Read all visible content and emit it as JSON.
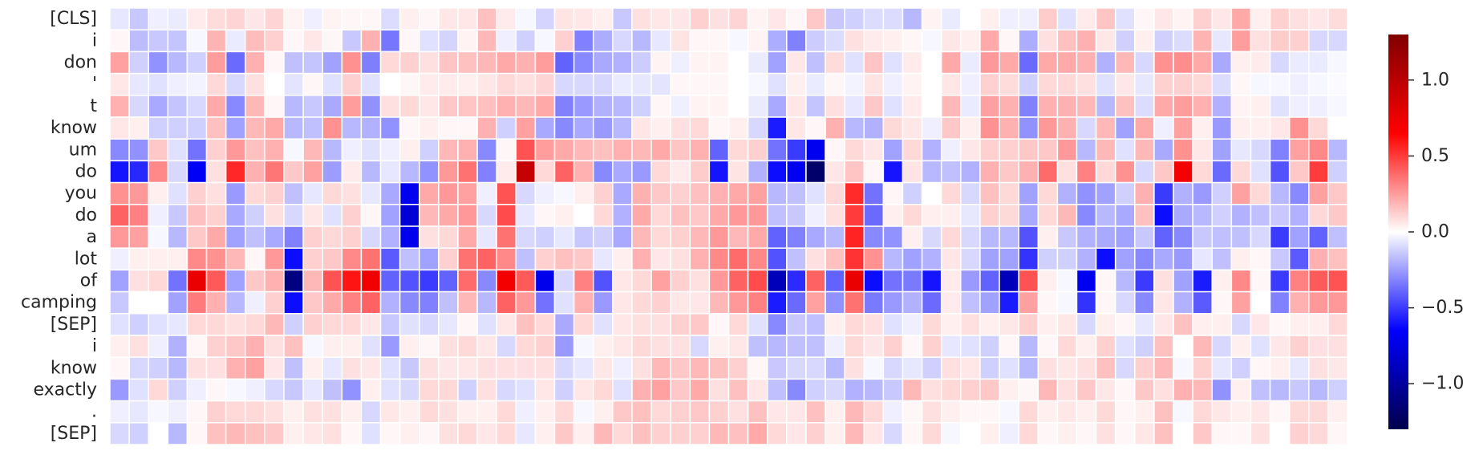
{
  "chart_data": {
    "type": "heatmap",
    "title": "",
    "xlabel": "",
    "ylabel": "",
    "rows": [
      "[CLS]",
      "i",
      "don",
      "'",
      "t",
      "know",
      "um",
      "do",
      "you",
      "do",
      "a",
      "lot",
      "of",
      "camping",
      "[SEP]",
      "i",
      "know",
      "exactly",
      ".",
      "[SEP]"
    ],
    "n_columns": 64,
    "x_tick_labels": [],
    "colormap": "seismic",
    "vmin": -1.3,
    "vmax": 1.3,
    "colorbar_ticks": [
      1.0,
      0.5,
      0.0,
      -0.5,
      -1.0
    ],
    "colorbar_tick_labels": [
      "1.0",
      "0.5",
      "0.0",
      "−0.5",
      "−1.0"
    ],
    "grid": "white cell borders",
    "values": [
      [
        -0.06,
        -0.14,
        -0.04,
        -0.05,
        0.05,
        0.09,
        0.11,
        0.06,
        0.11,
        0.03,
        -0.04,
        0.03,
        0.02,
        0.02,
        -0.09,
        0.04,
        0.02,
        0.06,
        0.06,
        0.16,
        0.05,
        -0.02,
        -0.11,
        0.07,
        0.06,
        0.04,
        -0.14,
        0.08,
        0.06,
        0.06,
        0.12,
        0.08,
        0.11,
        0.03,
        0.06,
        0.02,
        0.14,
        -0.14,
        -0.12,
        -0.09,
        -0.09,
        -0.18,
        0.03,
        -0.05,
        0.0,
        0.04,
        -0.04,
        -0.04,
        0.13,
        -0.08,
        0.05,
        0.15,
        -0.08,
        0.02,
        0.06,
        0.03,
        0.12,
        0.06,
        0.22,
        0.04,
        0.12,
        0.08,
        0.06,
        0.09
      ],
      [
        0.02,
        -0.17,
        -0.14,
        -0.15,
        -0.02,
        0.19,
        -0.05,
        0.17,
        0.12,
        0.02,
        0.06,
        0.02,
        -0.14,
        0.2,
        -0.35,
        0.02,
        -0.08,
        -0.11,
        0.03,
        0.18,
        -0.04,
        -0.12,
        -0.02,
        0.12,
        -0.32,
        -0.21,
        -0.1,
        -0.18,
        -0.06,
        0.07,
        0.02,
        0.02,
        -0.02,
        0.03,
        -0.21,
        -0.32,
        -0.13,
        -0.09,
        0.08,
        0.05,
        0.04,
        0.02,
        -0.02,
        0.06,
        0.04,
        0.22,
        0.02,
        -0.21,
        0.08,
        0.16,
        0.2,
        0.06,
        -0.12,
        0.04,
        -0.12,
        -0.09,
        0.19,
        -0.06,
        0.25,
        0.08,
        0.13,
        0.12,
        -0.1,
        -0.1
      ],
      [
        0.24,
        -0.12,
        -0.28,
        -0.18,
        -0.12,
        0.25,
        -0.38,
        0.2,
        0.02,
        -0.16,
        -0.15,
        -0.24,
        0.28,
        -0.33,
        0.1,
        0.12,
        0.08,
        0.15,
        0.16,
        0.18,
        0.22,
        0.2,
        0.25,
        -0.4,
        -0.3,
        -0.22,
        -0.2,
        -0.13,
        0.03,
        -0.04,
        0.03,
        0.03,
        0.0,
        -0.05,
        -0.24,
        0.06,
        -0.16,
        0.09,
        -0.08,
        0.15,
        -0.08,
        0.05,
        0.0,
        0.22,
        -0.05,
        0.26,
        0.22,
        -0.38,
        0.22,
        0.22,
        0.2,
        -0.2,
        0.18,
        -0.1,
        0.28,
        0.29,
        0.22,
        -0.22,
        0.04,
        0.05,
        -0.1,
        -0.05,
        -0.05,
        -0.02
      ],
      [
        0.06,
        -0.06,
        -0.08,
        -0.04,
        -0.03,
        0.1,
        -0.1,
        0.08,
        0.0,
        -0.07,
        0.02,
        -0.08,
        0.12,
        -0.08,
        0.0,
        0.02,
        0.05,
        0.05,
        0.04,
        0.06,
        0.1,
        0.08,
        0.11,
        -0.1,
        -0.1,
        -0.1,
        -0.05,
        -0.06,
        -0.07,
        0.02,
        0.02,
        0.02,
        0.0,
        -0.02,
        -0.08,
        0.04,
        -0.05,
        0.02,
        -0.03,
        0.07,
        -0.04,
        0.03,
        0.0,
        0.06,
        -0.04,
        0.12,
        0.09,
        -0.12,
        0.1,
        0.1,
        0.08,
        -0.08,
        0.06,
        -0.06,
        0.12,
        0.12,
        0.1,
        -0.09,
        0.02,
        -0.02,
        -0.02,
        -0.04,
        -0.02,
        -0.01
      ],
      [
        0.2,
        -0.1,
        -0.22,
        -0.15,
        -0.1,
        0.22,
        -0.3,
        0.18,
        0.02,
        -0.18,
        -0.14,
        -0.22,
        0.25,
        -0.28,
        0.08,
        0.1,
        0.06,
        0.14,
        0.15,
        0.16,
        0.2,
        0.18,
        0.22,
        -0.32,
        -0.26,
        -0.2,
        -0.18,
        -0.12,
        0.02,
        -0.04,
        0.03,
        0.03,
        0.0,
        -0.05,
        -0.22,
        0.06,
        -0.15,
        0.08,
        -0.06,
        0.14,
        -0.08,
        0.05,
        0.0,
        0.18,
        -0.05,
        0.24,
        0.2,
        -0.32,
        0.2,
        0.2,
        0.18,
        -0.18,
        0.16,
        -0.09,
        0.22,
        0.25,
        0.2,
        -0.2,
        0.03,
        0.04,
        -0.08,
        -0.04,
        -0.04,
        -0.02
      ],
      [
        0.06,
        0.04,
        -0.12,
        -0.12,
        -0.12,
        0.16,
        -0.24,
        0.18,
        0.22,
        -0.18,
        -0.16,
        0.28,
        -0.18,
        -0.2,
        -0.28,
        0.02,
        0.04,
        0.02,
        0.02,
        0.2,
        -0.12,
        0.24,
        -0.22,
        -0.3,
        -0.22,
        -0.26,
        -0.18,
        0.06,
        0.04,
        0.08,
        0.1,
        0.02,
        0.04,
        -0.1,
        -0.58,
        0.06,
        0.02,
        0.2,
        -0.18,
        -0.2,
        0.1,
        0.06,
        -0.04,
        0.14,
        0.04,
        0.28,
        0.2,
        -0.28,
        0.26,
        0.2,
        -0.1,
        0.18,
        -0.24,
        0.22,
        -0.04,
        0.24,
        0.04,
        -0.26,
        0.04,
        0.04,
        0.06,
        0.28,
        0.1,
        0.0
      ],
      [
        -0.3,
        -0.28,
        0.14,
        -0.08,
        -0.36,
        0.12,
        0.26,
        0.16,
        0.2,
        -0.02,
        0.18,
        -0.18,
        -0.04,
        -0.08,
        -0.04,
        0.04,
        -0.12,
        0.18,
        0.2,
        -0.3,
        0.02,
        0.44,
        0.25,
        0.22,
        0.18,
        0.16,
        0.2,
        0.18,
        0.22,
        0.15,
        0.2,
        -0.4,
        0.1,
        0.12,
        -0.36,
        -0.5,
        -0.7,
        0.02,
        0.1,
        0.06,
        -0.24,
        0.1,
        -0.2,
        -0.04,
        0.06,
        0.12,
        0.12,
        0.14,
        0.14,
        0.26,
        -0.18,
        0.18,
        -0.08,
        0.18,
        -0.22,
        0.28,
        0.06,
        -0.24,
        -0.06,
        -0.1,
        -0.32,
        0.24,
        0.3,
        -0.18
      ],
      [
        -0.6,
        -0.55,
        0.3,
        -0.1,
        -0.68,
        0.08,
        0.55,
        0.2,
        0.35,
        0.14,
        0.24,
        -0.25,
        0.05,
        -0.18,
        -0.06,
        -0.18,
        -0.28,
        0.26,
        0.36,
        -0.32,
        0.05,
        0.95,
        0.1,
        0.4,
        0.2,
        -0.3,
        -0.22,
        -0.26,
        0.1,
        0.05,
        0.13,
        -0.6,
        0.07,
        -0.2,
        -0.62,
        -0.7,
        -1.2,
        0.06,
        0.15,
        0.02,
        -0.6,
        0.07,
        -0.18,
        -0.16,
        -0.2,
        0.2,
        0.14,
        0.2,
        0.38,
        0.08,
        0.32,
        0.1,
        0.28,
        -0.1,
        0.14,
        0.7,
        0.1,
        -0.38,
        0.1,
        -0.08,
        -0.44,
        0.14,
        0.5,
        -0.12
      ],
      [
        0.28,
        0.26,
        0.04,
        -0.08,
        0.12,
        0.08,
        -0.26,
        0.1,
        0.12,
        -0.16,
        -0.06,
        0.1,
        0.08,
        -0.06,
        -0.22,
        -0.7,
        0.22,
        0.26,
        0.24,
        -0.04,
        0.44,
        -0.1,
        -0.04,
        -0.02,
        0.04,
        0.12,
        -0.22,
        0.2,
        0.14,
        0.12,
        0.16,
        0.2,
        0.22,
        0.24,
        -0.18,
        -0.16,
        -0.08,
        0.1,
        0.54,
        -0.36,
        0.02,
        -0.12,
        0.0,
        0.1,
        -0.1,
        0.16,
        0.1,
        -0.24,
        0.1,
        -0.2,
        -0.28,
        -0.24,
        -0.12,
        0.2,
        -0.5,
        -0.2,
        -0.26,
        -0.12,
        0.24,
        0.1,
        -0.18,
        -0.3,
        0.24,
        0.14
      ],
      [
        0.4,
        0.32,
        -0.04,
        -0.14,
        0.16,
        0.12,
        -0.22,
        -0.12,
        0.08,
        -0.1,
        0.06,
        -0.08,
        0.12,
        0.02,
        -0.24,
        -0.8,
        0.18,
        0.22,
        0.26,
        -0.1,
        0.46,
        -0.06,
        0.02,
        0.04,
        0.0,
        0.1,
        -0.2,
        0.22,
        0.1,
        0.16,
        0.14,
        0.22,
        0.26,
        0.26,
        -0.16,
        -0.14,
        -0.04,
        0.08,
        0.5,
        -0.38,
        0.04,
        0.1,
        0.04,
        0.04,
        -0.06,
        0.12,
        0.1,
        -0.22,
        0.1,
        0.18,
        -0.3,
        -0.18,
        -0.22,
        0.16,
        -0.62,
        -0.22,
        -0.18,
        -0.12,
        -0.2,
        -0.16,
        -0.14,
        -0.2,
        0.1,
        0.14
      ],
      [
        0.26,
        0.24,
        -0.02,
        -0.18,
        0.14,
        0.22,
        -0.24,
        -0.16,
        -0.22,
        -0.32,
        0.12,
        0.1,
        0.12,
        -0.1,
        -0.2,
        -0.72,
        0.08,
        0.1,
        0.22,
        -0.06,
        0.36,
        -0.1,
        -0.12,
        -0.06,
        -0.14,
        -0.12,
        -0.22,
        0.18,
        0.1,
        0.12,
        0.18,
        0.26,
        0.18,
        0.22,
        -0.4,
        -0.32,
        -0.22,
        -0.18,
        0.56,
        -0.3,
        -0.28,
        0.04,
        -0.1,
        0.1,
        -0.1,
        -0.18,
        -0.18,
        -0.44,
        0.04,
        -0.14,
        -0.2,
        -0.22,
        -0.24,
        -0.14,
        -0.4,
        -0.3,
        -0.14,
        -0.16,
        -0.16,
        -0.1,
        -0.5,
        -0.24,
        -0.4,
        -0.16
      ],
      [
        -0.04,
        0.04,
        0.04,
        0.04,
        0.3,
        0.28,
        0.18,
        0.02,
        0.26,
        -0.62,
        0.12,
        0.14,
        0.3,
        0.36,
        -0.42,
        -0.16,
        -0.24,
        0.12,
        0.36,
        0.4,
        0.3,
        -0.16,
        0.12,
        0.16,
        0.14,
        -0.06,
        0.04,
        0.2,
        0.06,
        0.08,
        0.2,
        0.3,
        0.38,
        0.3,
        -0.44,
        -0.16,
        0.08,
        0.16,
        0.52,
        0.28,
        -0.18,
        -0.24,
        -0.2,
        0.06,
        -0.1,
        -0.24,
        -0.24,
        -0.52,
        -0.12,
        -0.12,
        -0.2,
        -0.62,
        -0.24,
        -0.3,
        -0.22,
        -0.26,
        -0.06,
        -0.16,
        0.04,
        0.02,
        -0.14,
        -0.42,
        0.2,
        0.16
      ],
      [
        -0.24,
        0.08,
        0.1,
        -0.36,
        0.75,
        0.42,
        -0.24,
        0.14,
        0.2,
        -1.1,
        0.18,
        0.44,
        0.6,
        0.72,
        -0.4,
        -0.44,
        -0.5,
        -0.4,
        0.38,
        -0.3,
        0.7,
        0.42,
        -0.72,
        -0.1,
        0.32,
        -0.44,
        0.06,
        0.1,
        0.24,
        0.12,
        0.08,
        0.26,
        0.4,
        0.46,
        -0.9,
        -0.54,
        0.4,
        -0.4,
        0.75,
        -0.62,
        -0.36,
        -0.34,
        -0.6,
        0.05,
        -0.26,
        -0.4,
        -0.9,
        0.44,
        0.04,
        -0.02,
        -0.7,
        0.02,
        -0.18,
        -0.5,
        0.08,
        -0.24,
        -0.58,
        0.04,
        0.3,
        0.02,
        -0.5,
        0.32,
        0.42,
        0.44
      ],
      [
        -0.14,
        0.0,
        0.0,
        -0.24,
        0.34,
        0.2,
        -0.18,
        -0.04,
        0.12,
        -0.62,
        0.14,
        0.22,
        0.32,
        0.4,
        -0.2,
        -0.3,
        -0.32,
        -0.16,
        0.18,
        -0.18,
        0.4,
        0.26,
        -0.36,
        -0.08,
        0.2,
        -0.26,
        0.06,
        0.1,
        0.12,
        0.06,
        0.06,
        0.18,
        0.26,
        0.32,
        -0.58,
        -0.38,
        0.24,
        -0.28,
        0.36,
        -0.34,
        -0.26,
        -0.2,
        -0.38,
        0.05,
        -0.16,
        -0.24,
        -0.58,
        0.24,
        0.02,
        -0.02,
        -0.52,
        0.02,
        -0.1,
        -0.3,
        0.06,
        -0.2,
        -0.42,
        0.02,
        0.24,
        0.0,
        -0.32,
        0.2,
        0.26,
        0.26
      ],
      [
        -0.08,
        -0.12,
        -0.08,
        -0.06,
        0.1,
        0.1,
        0.08,
        0.1,
        0.18,
        -0.12,
        0.12,
        0.1,
        0.1,
        0.06,
        -0.14,
        -0.08,
        -0.1,
        -0.06,
        0.02,
        -0.08,
        0.06,
        0.16,
        0.1,
        -0.22,
        0.1,
        -0.08,
        0.06,
        0.08,
        0.08,
        0.12,
        0.14,
        0.02,
        0.1,
        -0.08,
        -0.3,
        -0.14,
        -0.16,
        0.04,
        0.1,
        0.08,
        -0.08,
        -0.04,
        0.1,
        0.04,
        0.08,
        0.04,
        0.06,
        0.12,
        0.04,
        0.06,
        -0.1,
        0.04,
        0.02,
        -0.06,
        0.06,
        0.16,
        0.04,
        0.04,
        -0.1,
        0.06,
        0.02,
        0.04,
        0.04,
        0.1
      ],
      [
        0.04,
        0.08,
        -0.04,
        -0.2,
        0.02,
        0.12,
        0.14,
        0.2,
        0.08,
        0.16,
        -0.02,
        0.04,
        0.04,
        -0.08,
        -0.26,
        0.04,
        0.02,
        0.08,
        0.1,
        0.06,
        -0.1,
        0.1,
        0.12,
        -0.26,
        -0.02,
        0.04,
        0.06,
        0.1,
        0.08,
        0.08,
        -0.1,
        0.04,
        0.06,
        -0.16,
        -0.18,
        -0.16,
        -0.16,
        -0.04,
        0.1,
        0.06,
        0.12,
        0.02,
        0.12,
        -0.06,
        -0.08,
        -0.12,
        0.02,
        -0.18,
        0.02,
        0.1,
        0.04,
        0.12,
        -0.08,
        -0.12,
        0.16,
        0.0,
        0.18,
        -0.1,
        0.04,
        -0.08,
        0.06,
        0.12,
        0.08,
        0.08
      ],
      [
        0.02,
        -0.1,
        -0.12,
        -0.18,
        0.08,
        0.08,
        0.2,
        0.24,
        0.06,
        -0.16,
        0.04,
        -0.06,
        0.08,
        0.06,
        -0.08,
        -0.14,
        0.08,
        0.06,
        0.06,
        0.08,
        0.08,
        0.08,
        0.08,
        -0.1,
        -0.06,
        0.06,
        -0.04,
        0.08,
        0.18,
        0.14,
        0.18,
        0.16,
        0.12,
        0.02,
        -0.14,
        -0.1,
        -0.1,
        -0.18,
        0.08,
        -0.02,
        -0.1,
        -0.06,
        -0.12,
        0.08,
        0.06,
        -0.12,
        -0.08,
        -0.18,
        0.08,
        0.06,
        0.08,
        0.16,
        -0.1,
        0.12,
        0.18,
        -0.02,
        0.12,
        -0.06,
        -0.12,
        0.02,
        0.04,
        -0.06,
        0.08,
        0.06
      ],
      [
        -0.26,
        -0.08,
        0.1,
        -0.12,
        -0.04,
        0.02,
        -0.02,
        -0.04,
        -0.1,
        -0.14,
        -0.06,
        -0.16,
        -0.28,
        0.04,
        -0.08,
        -0.1,
        0.1,
        0.1,
        -0.12,
        0.08,
        -0.1,
        -0.08,
        0.06,
        -0.12,
        0.06,
        0.1,
        -0.08,
        0.2,
        0.24,
        0.14,
        0.22,
        0.08,
        0.16,
        0.06,
        -0.16,
        -0.3,
        -0.12,
        -0.1,
        -0.2,
        -0.18,
        -0.14,
        0.18,
        0.08,
        0.1,
        0.12,
        0.14,
        0.04,
        0.02,
        0.18,
        0.08,
        0.14,
        0.06,
        0.02,
        0.14,
        0.08,
        0.2,
        0.18,
        -0.28,
        0.04,
        -0.16,
        -0.18,
        -0.14,
        -0.18,
        -0.12
      ],
      [
        -0.04,
        -0.06,
        -0.02,
        -0.04,
        0.02,
        0.12,
        0.1,
        0.1,
        0.08,
        0.04,
        0.08,
        0.08,
        0.04,
        -0.1,
        0.06,
        0.04,
        0.1,
        0.08,
        0.04,
        0.04,
        0.1,
        -0.04,
        0.04,
        0.1,
        -0.02,
        0.04,
        0.14,
        0.16,
        0.1,
        0.12,
        0.14,
        0.12,
        0.08,
        0.16,
        0.06,
        0.06,
        0.16,
        0.04,
        0.18,
        0.1,
        -0.04,
        0.02,
        0.08,
        0.04,
        0.02,
        0.02,
        -0.02,
        0.1,
        0.04,
        0.06,
        0.04,
        0.1,
        0.02,
        0.04,
        0.16,
        -0.02,
        0.1,
        0.06,
        0.04,
        0.06,
        0.02,
        0.1,
        0.1,
        0.04
      ],
      [
        -0.1,
        -0.12,
        0.0,
        -0.18,
        0.02,
        0.16,
        0.18,
        0.16,
        0.14,
        0.04,
        0.06,
        0.08,
        0.02,
        -0.08,
        0.02,
        0.04,
        0.02,
        0.08,
        0.1,
        0.06,
        0.1,
        -0.06,
        0.04,
        0.14,
        0.04,
        0.18,
        0.1,
        0.16,
        0.12,
        0.12,
        0.12,
        0.18,
        0.16,
        0.22,
        0.1,
        0.06,
        0.12,
        0.04,
        0.18,
        0.06,
        -0.1,
        0.02,
        0.1,
        -0.02,
        0.0,
        0.04,
        -0.04,
        0.1,
        0.02,
        0.04,
        0.02,
        0.08,
        0.02,
        0.06,
        0.16,
        0.0,
        0.14,
        0.02,
        0.02,
        0.08,
        0.0,
        0.12,
        0.1,
        0.02
      ]
    ]
  }
}
